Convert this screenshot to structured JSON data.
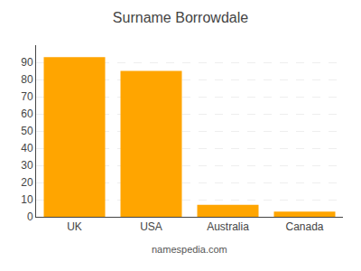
{
  "chart_data": {
    "type": "bar",
    "title": "Surname Borrowdale",
    "categories": [
      "UK",
      "USA",
      "Australia",
      "Canada"
    ],
    "values": [
      93,
      85,
      7,
      3
    ],
    "color": "#FFA500",
    "ylim": [
      0,
      100
    ],
    "yticks": [
      0,
      10,
      20,
      30,
      40,
      50,
      60,
      70,
      80,
      90
    ],
    "grid": true,
    "annotations": [
      "namespedia.com"
    ]
  }
}
